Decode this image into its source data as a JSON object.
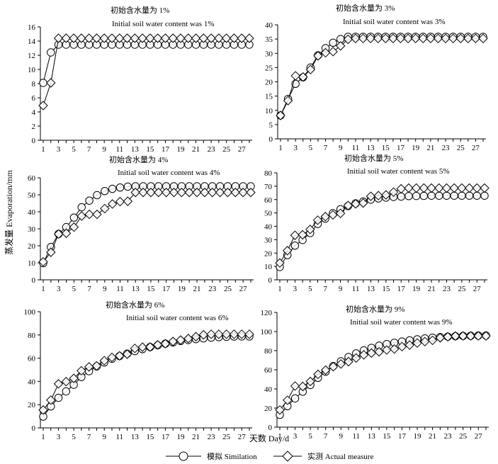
{
  "figure": {
    "ylabel": "蒸发量 Evaporation/mm",
    "xlabel": "天数 Day/d",
    "legend": {
      "simulation": "模拟 Similation",
      "actual": "实测 Actual measure"
    }
  },
  "chart_data": [
    {
      "type": "line",
      "title": "初始含水量为 1%",
      "subtitle": "Initial soil water content was 1%",
      "ylim": [
        0,
        16
      ],
      "yticks": [
        0,
        2,
        4,
        6,
        8,
        10,
        12,
        14,
        16
      ],
      "xlim": [
        1,
        27
      ],
      "xticks": [
        1,
        3,
        5,
        7,
        9,
        11,
        13,
        15,
        17,
        19,
        21,
        23,
        25,
        27
      ],
      "x": [
        1,
        2,
        3,
        4,
        5,
        6,
        7,
        8,
        9,
        10,
        11,
        12,
        13,
        14,
        15,
        16,
        17,
        18,
        19,
        20,
        21,
        22,
        23,
        24,
        25,
        26,
        27,
        28
      ],
      "series": [
        {
          "name": "模拟 Similation",
          "marker": "circle",
          "values": [
            8.1,
            12.4,
            13.5,
            13.5,
            13.5,
            13.5,
            13.5,
            13.5,
            13.5,
            13.5,
            13.5,
            13.5,
            13.5,
            13.5,
            13.5,
            13.5,
            13.5,
            13.5,
            13.5,
            13.5,
            13.5,
            13.5,
            13.5,
            13.5,
            13.5,
            13.5,
            13.5,
            13.5
          ]
        },
        {
          "name": "实测 Actual measure",
          "marker": "diamond",
          "values": [
            4.9,
            8.1,
            14.4,
            14.4,
            14.4,
            14.4,
            14.4,
            14.4,
            14.4,
            14.4,
            14.4,
            14.4,
            14.4,
            14.4,
            14.4,
            14.4,
            14.4,
            14.4,
            14.4,
            14.4,
            14.4,
            14.4,
            14.4,
            14.4,
            14.4,
            14.4,
            14.4,
            14.4
          ]
        }
      ]
    },
    {
      "type": "line",
      "title": "初始含水量为 3%",
      "subtitle": "Initial soil water content was 3%",
      "ylim": [
        0,
        40
      ],
      "yticks": [
        0,
        5,
        10,
        15,
        20,
        25,
        30,
        35,
        40
      ],
      "xlim": [
        1,
        27
      ],
      "xticks": [
        1,
        3,
        5,
        7,
        9,
        11,
        13,
        15,
        17,
        19,
        21,
        23,
        25,
        27
      ],
      "x": [
        1,
        2,
        3,
        4,
        5,
        6,
        7,
        8,
        9,
        10,
        11,
        12,
        13,
        14,
        15,
        16,
        17,
        18,
        19,
        20,
        21,
        22,
        23,
        24,
        25,
        26,
        27,
        28
      ],
      "series": [
        {
          "name": "模拟 Similation",
          "marker": "circle",
          "values": [
            8.2,
            14.0,
            19.3,
            21.6,
            25.0,
            29.3,
            31.8,
            33.7,
            35.0,
            35.8,
            35.8,
            35.8,
            35.8,
            35.8,
            35.8,
            35.8,
            35.8,
            35.8,
            35.8,
            35.8,
            35.8,
            35.8,
            35.8,
            35.8,
            35.8,
            35.8,
            35.8,
            35.8
          ]
        },
        {
          "name": "实测 Actual measure",
          "marker": "diamond",
          "values": [
            8.2,
            13.4,
            22.1,
            21.7,
            24.3,
            29.1,
            30.2,
            30.6,
            32.6,
            34.9,
            35.2,
            35.2,
            35.2,
            35.2,
            35.2,
            35.2,
            35.2,
            35.2,
            35.2,
            35.2,
            35.2,
            35.2,
            35.2,
            35.2,
            35.2,
            35.2,
            35.2,
            35.2
          ]
        }
      ]
    },
    {
      "type": "line",
      "title": "初始含水量为 4%",
      "subtitle": "Initial soil water content was 4%",
      "ylim": [
        0,
        60
      ],
      "yticks": [
        0,
        10,
        20,
        30,
        40,
        50,
        60
      ],
      "xlim": [
        1,
        27
      ],
      "xticks": [
        1,
        3,
        5,
        7,
        9,
        11,
        13,
        15,
        17,
        19,
        21,
        23,
        25,
        27
      ],
      "x": [
        1,
        2,
        3,
        4,
        5,
        6,
        7,
        8,
        9,
        10,
        11,
        12,
        13,
        14,
        15,
        16,
        17,
        18,
        19,
        20,
        21,
        22,
        23,
        24,
        25,
        26,
        27,
        28
      ],
      "series": [
        {
          "name": "模拟 Similation",
          "marker": "circle",
          "values": [
            9.8,
            19.3,
            27.0,
            31.0,
            36.6,
            42.7,
            46.6,
            49.8,
            52.2,
            53.5,
            54.3,
            54.8,
            55.0,
            55.0,
            55.0,
            55.0,
            55.0,
            55.0,
            55.0,
            55.0,
            55.0,
            55.0,
            55.0,
            55.0,
            55.0,
            55.0,
            55.0,
            55.0
          ]
        },
        {
          "name": "实测 Actual measure",
          "marker": "diamond",
          "values": [
            10.6,
            16.2,
            26.9,
            27.4,
            31.0,
            37.5,
            38.5,
            38.5,
            41.9,
            44.6,
            46.0,
            46.2,
            51.4,
            51.4,
            51.4,
            51.4,
            51.4,
            51.4,
            51.4,
            51.4,
            51.4,
            51.4,
            51.4,
            51.4,
            51.4,
            51.4,
            51.4,
            51.4
          ]
        }
      ]
    },
    {
      "type": "line",
      "title": "初始含水量为 5%",
      "subtitle": "Initial soil water content was 5%",
      "ylim": [
        0,
        80
      ],
      "yticks": [
        0,
        10,
        20,
        30,
        40,
        50,
        60,
        70,
        80
      ],
      "xlim": [
        1,
        27
      ],
      "xticks": [
        1,
        3,
        5,
        7,
        9,
        11,
        13,
        15,
        17,
        19,
        21,
        23,
        25,
        27
      ],
      "x": [
        1,
        2,
        3,
        4,
        5,
        6,
        7,
        8,
        9,
        10,
        11,
        12,
        13,
        14,
        15,
        16,
        17,
        18,
        19,
        20,
        21,
        22,
        23,
        24,
        25,
        26,
        27,
        28
      ],
      "series": [
        {
          "name": "模拟 Similation",
          "marker": "circle",
          "values": [
            9.6,
            18.5,
            25.6,
            29.8,
            35.0,
            41.8,
            45.8,
            49.8,
            52.8,
            55.2,
            57.2,
            58.6,
            60.0,
            60.9,
            61.5,
            62.0,
            62.3,
            62.6,
            62.7,
            62.8,
            62.9,
            62.9,
            62.9,
            62.9,
            62.9,
            62.9,
            62.9,
            62.9
          ]
        },
        {
          "name": "实测 Actual measure",
          "marker": "diamond",
          "values": [
            12.6,
            21.8,
            33.3,
            33.7,
            37.7,
            44.6,
            47.3,
            48.5,
            49.7,
            55.6,
            56.8,
            57.4,
            62.5,
            63.0,
            63.5,
            65.6,
            68.1,
            68.6,
            68.6,
            68.6,
            68.6,
            68.6,
            68.6,
            68.6,
            68.6,
            68.6,
            68.6,
            68.6
          ]
        }
      ]
    },
    {
      "type": "line",
      "title": "初始含水量为 6%",
      "subtitle": "Initial soil water content was 6%",
      "ylim": [
        0,
        100
      ],
      "yticks": [
        0,
        20,
        40,
        60,
        80,
        100
      ],
      "xlim": [
        1,
        27
      ],
      "xticks": [
        1,
        3,
        5,
        7,
        9,
        11,
        13,
        15,
        17,
        19,
        21,
        23,
        25,
        27
      ],
      "x": [
        1,
        2,
        3,
        4,
        5,
        6,
        7,
        8,
        9,
        10,
        11,
        12,
        13,
        14,
        15,
        16,
        17,
        18,
        19,
        20,
        21,
        22,
        23,
        24,
        25,
        26,
        27,
        28
      ],
      "series": [
        {
          "name": "模拟 Similation",
          "marker": "circle",
          "values": [
            9.7,
            18.5,
            25.9,
            31.4,
            37.1,
            43.8,
            48.8,
            52.9,
            56.3,
            59.5,
            61.8,
            63.9,
            66.1,
            67.8,
            69.6,
            71.1,
            72.5,
            73.6,
            74.8,
            75.6,
            76.4,
            77.1,
            77.7,
            78.1,
            78.4,
            78.6,
            78.7,
            78.7
          ]
        },
        {
          "name": "实测 Actual measure",
          "marker": "diamond",
          "values": [
            15.4,
            23.9,
            37.9,
            39.8,
            42.6,
            49.2,
            52.5,
            53.4,
            57.9,
            60.7,
            62.0,
            63.4,
            68.4,
            69.5,
            69.6,
            71.5,
            72.4,
            74.4,
            75.6,
            76.9,
            78.5,
            80.1,
            80.6,
            80.6,
            80.6,
            80.6,
            80.6,
            80.6
          ]
        }
      ]
    },
    {
      "type": "line",
      "title": "初始含水量为 9%",
      "subtitle": "Initial soil water content was 9%",
      "ylim": [
        0,
        120
      ],
      "yticks": [
        0,
        20,
        40,
        60,
        80,
        100,
        120
      ],
      "xlim": [
        1,
        27
      ],
      "xticks": [
        1,
        3,
        5,
        7,
        9,
        11,
        13,
        15,
        17,
        19,
        21,
        23,
        25,
        27
      ],
      "x": [
        1,
        2,
        3,
        4,
        5,
        6,
        7,
        8,
        9,
        10,
        11,
        12,
        13,
        14,
        15,
        16,
        17,
        18,
        19,
        20,
        21,
        22,
        23,
        24,
        25,
        26,
        27,
        28
      ],
      "series": [
        {
          "name": "模拟 Similation",
          "marker": "circle",
          "values": [
            12.9,
            22.0,
            30.1,
            37.1,
            44.1,
            51.6,
            58.0,
            63.9,
            68.9,
            73.4,
            77.2,
            80.3,
            82.9,
            85.2,
            86.9,
            88.3,
            89.6,
            90.8,
            91.9,
            92.8,
            93.6,
            94.2,
            94.7,
            95.1,
            95.4,
            95.6,
            95.8,
            95.9
          ]
        },
        {
          "name": "实测 Actual measure",
          "marker": "diamond",
          "values": [
            18.0,
            28.2,
            43.0,
            42.6,
            47.8,
            55.2,
            59.7,
            63.2,
            66.1,
            68.5,
            72.3,
            75.6,
            77.5,
            78.8,
            80.7,
            81.7,
            84.2,
            85.8,
            88.0,
            89.5,
            90.8,
            93.4,
            94.5,
            95.3,
            95.4,
            95.4,
            95.4,
            95.4
          ]
        }
      ]
    }
  ]
}
